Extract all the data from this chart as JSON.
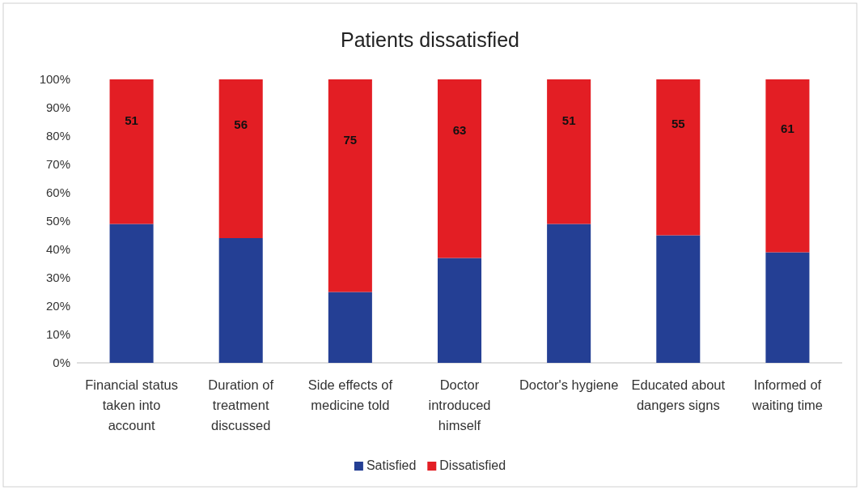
{
  "chart_data": {
    "type": "bar",
    "title": "Patients dissatisfied",
    "stacked": true,
    "categories": [
      "Financial status taken into account",
      "Duration of treatment discussed",
      "Side effects of medicine told",
      "Doctor introduced himself",
      "Doctor's hygiene",
      "Educated about dangers signs",
      "Informed of waiting time"
    ],
    "series": [
      {
        "name": "Satisfied",
        "color": "#243f94",
        "values": [
          49,
          44,
          25,
          37,
          49,
          45,
          39
        ]
      },
      {
        "name": "Dissatisfied",
        "color": "#e31e24",
        "values": [
          51,
          56,
          75,
          63,
          51,
          55,
          61
        ],
        "value_labels": [
          "51",
          "56",
          "75",
          "63",
          "51",
          "55",
          "61"
        ]
      }
    ],
    "ylim": [
      0,
      100
    ],
    "yticks": [
      {
        "value": 0,
        "label": "0%"
      },
      {
        "value": 10,
        "label": "10%"
      },
      {
        "value": 20,
        "label": "20%"
      },
      {
        "value": 30,
        "label": "30%"
      },
      {
        "value": 40,
        "label": "40%"
      },
      {
        "value": 50,
        "label": "50%"
      },
      {
        "value": 60,
        "label": "60%"
      },
      {
        "value": 70,
        "label": "70%"
      },
      {
        "value": 80,
        "label": "80%"
      },
      {
        "value": 90,
        "label": "90%"
      },
      {
        "value": 100,
        "label": "100%"
      }
    ],
    "grid": false,
    "legend": "bottom"
  }
}
